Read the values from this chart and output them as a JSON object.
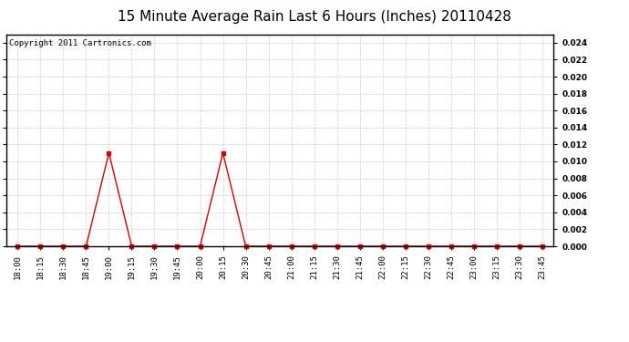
{
  "title": "15 Minute Average Rain Last 6 Hours (Inches) 20110428",
  "copyright_text": "Copyright 2011 Cartronics.com",
  "x_labels": [
    "18:00",
    "18:15",
    "18:30",
    "18:45",
    "19:00",
    "19:15",
    "19:30",
    "19:45",
    "20:00",
    "20:15",
    "20:30",
    "20:45",
    "21:00",
    "21:15",
    "21:30",
    "21:45",
    "22:00",
    "22:15",
    "22:30",
    "22:45",
    "23:00",
    "23:15",
    "23:30",
    "23:45"
  ],
  "y_values": [
    0.0,
    0.0,
    0.0,
    0.0,
    0.011,
    0.0,
    0.0,
    0.0,
    0.0,
    0.011,
    0.0,
    0.0,
    0.0,
    0.0,
    0.0,
    0.0,
    0.0,
    0.0,
    0.0,
    0.0,
    0.0,
    0.0,
    0.0,
    0.0
  ],
  "line_color": "#cc0000",
  "marker": "s",
  "marker_size": 2.5,
  "ylim": [
    0.0,
    0.025
  ],
  "yticks": [
    0.0,
    0.002,
    0.004,
    0.006,
    0.008,
    0.01,
    0.012,
    0.014,
    0.016,
    0.018,
    0.02,
    0.022,
    0.024
  ],
  "background_color": "#ffffff",
  "plot_bg_color": "#ffffff",
  "grid_color": "#cccccc",
  "title_fontsize": 11,
  "tick_fontsize": 6.5,
  "copyright_fontsize": 6.5
}
